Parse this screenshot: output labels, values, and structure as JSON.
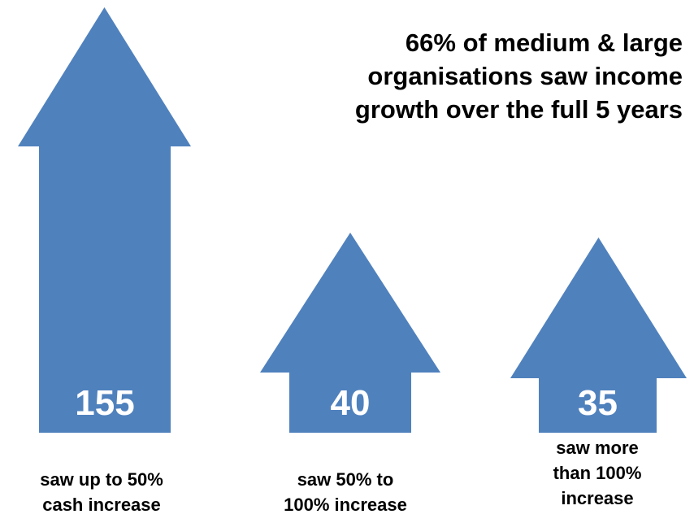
{
  "headline": {
    "lines": [
      "66% of medium & large",
      "organisations saw income",
      "growth over the full 5 years"
    ]
  },
  "chart_data": {
    "type": "bar",
    "categories": [
      "saw up to 50% cash increase",
      "saw 50% to 100% increase",
      "saw more than 100% increase"
    ],
    "values": [
      155,
      40,
      35
    ],
    "value_labels": [
      "155",
      "40",
      "35"
    ],
    "caption_lines": [
      [
        "saw up to 50%",
        "cash increase"
      ],
      [
        "saw 50% to",
        "100% increase"
      ],
      [
        "saw more",
        "than 100%",
        "increase"
      ]
    ],
    "color": "#4f81bd",
    "title": "",
    "xlabel": "",
    "ylabel": ""
  }
}
